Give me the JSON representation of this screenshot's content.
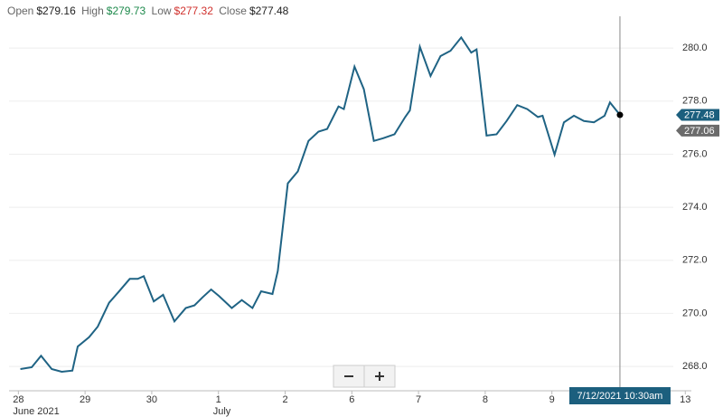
{
  "header": {
    "open_label": "Open",
    "open": "$279.16",
    "high_label": "High",
    "high": "$279.73",
    "low_label": "Low",
    "low": "$277.32",
    "close_label": "Close",
    "close": "$277.48"
  },
  "chart_data": {
    "type": "line",
    "x": [
      0.03,
      0.2,
      0.34,
      0.5,
      0.65,
      0.81,
      0.89,
      1.06,
      1.19,
      1.36,
      1.5,
      1.67,
      1.79,
      1.88,
      2.03,
      2.17,
      2.34,
      2.51,
      2.64,
      2.76,
      2.89,
      3.01,
      3.2,
      3.35,
      3.51,
      3.64,
      3.81,
      3.89,
      4.04,
      4.19,
      4.35,
      4.5,
      4.63,
      4.8,
      4.88,
      5.04,
      5.18,
      5.33,
      5.47,
      5.64,
      5.8,
      5.87,
      6.02,
      6.18,
      6.33,
      6.48,
      6.64,
      6.79,
      6.87,
      7.02,
      7.17,
      7.32,
      7.48,
      7.63,
      7.79,
      7.86,
      8.04,
      8.18,
      8.33,
      8.48,
      8.63,
      8.79,
      8.87,
      9.02
    ],
    "series": [
      {
        "color": "#1f6384",
        "values": [
          267.9,
          267.97,
          268.4,
          267.9,
          267.8,
          267.84,
          268.75,
          269.1,
          269.5,
          270.4,
          270.8,
          271.3,
          271.3,
          271.4,
          270.45,
          270.7,
          269.7,
          270.2,
          270.3,
          270.6,
          270.9,
          270.65,
          270.2,
          270.5,
          270.2,
          270.83,
          270.73,
          271.6,
          274.9,
          275.35,
          276.5,
          276.85,
          276.95,
          277.8,
          277.7,
          279.3,
          278.45,
          276.5,
          276.6,
          276.75,
          277.4,
          277.65,
          280.05,
          278.95,
          279.7,
          279.9,
          280.4,
          279.83,
          279.95,
          276.7,
          276.75,
          277.25,
          277.85,
          277.7,
          277.4,
          277.45,
          275.98,
          277.2,
          277.45,
          277.25,
          277.2,
          277.45,
          277.95,
          277.48
        ]
      }
    ],
    "xlim": [
      -0.14,
      9.82
    ],
    "ylim": [
      267.15,
      281.13
    ],
    "xticks": [
      {
        "value": 0,
        "label": "28"
      },
      {
        "value": 1,
        "label": "29"
      },
      {
        "value": 2,
        "label": "30"
      },
      {
        "value": 3,
        "label": "1"
      },
      {
        "value": 4,
        "label": "2"
      },
      {
        "value": 5,
        "label": "6"
      },
      {
        "value": 6,
        "label": "7"
      },
      {
        "value": 7,
        "label": "8"
      },
      {
        "value": 8,
        "label": "9"
      },
      {
        "value": 10,
        "label": "13"
      }
    ],
    "month_labels": [
      {
        "value": 0,
        "label": "June 2021"
      },
      {
        "value": 3,
        "label": "July"
      }
    ],
    "yticks": [
      268.0,
      270.0,
      272.0,
      274.0,
      276.0,
      278.0,
      280.0
    ],
    "grid": true,
    "crosshair": {
      "value": 9.02,
      "label": "7/12/2021 10:30am"
    },
    "price_tags": [
      {
        "value": 277.48,
        "color": "#1c5f7e"
      },
      {
        "value": 277.06,
        "color": "#6b6b6b"
      }
    ]
  }
}
